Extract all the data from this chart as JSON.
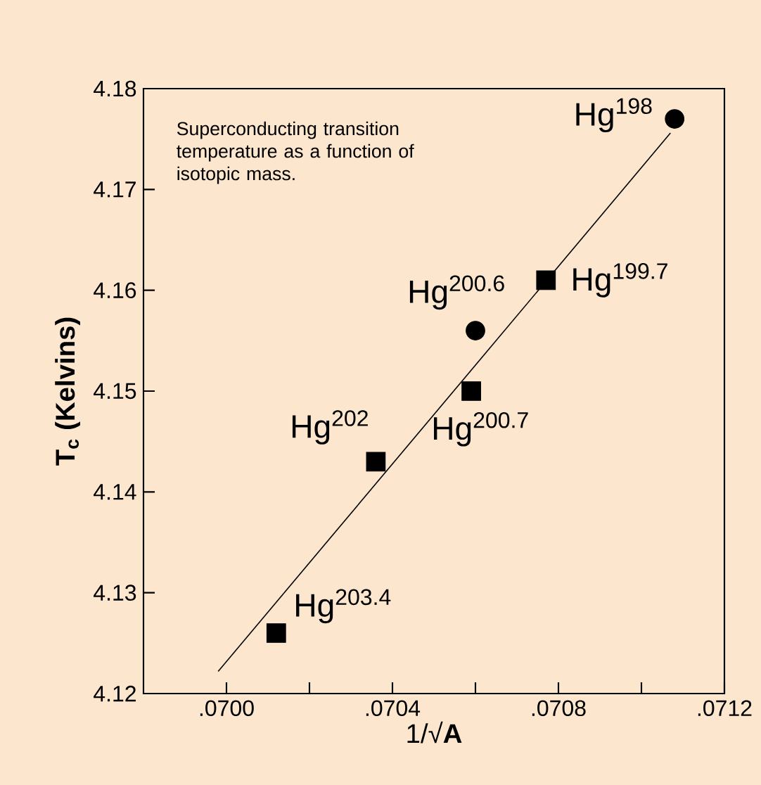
{
  "chart_data": {
    "type": "scatter",
    "xlabel": "1/√**A**",
    "ylabel": "T$_{c}$ (Kelvins)",
    "xlim": [
      0.0698,
      0.0712
    ],
    "ylim": [
      4.12,
      4.18
    ],
    "xticks": [
      {
        "value": 0.07,
        "label": ".0700"
      },
      {
        "value": 0.0702,
        "label": null
      },
      {
        "value": 0.0704,
        "label": ".0704"
      },
      {
        "value": 0.0706,
        "label": null
      },
      {
        "value": 0.0708,
        "label": ".0708"
      },
      {
        "value": 0.071,
        "label": null
      },
      {
        "value": 0.0712,
        "label": ".0712"
      }
    ],
    "yticks": [
      4.12,
      4.13,
      4.14,
      4.15,
      4.16,
      4.17,
      4.18
    ],
    "grid": false,
    "series": [
      {
        "marker": "circle",
        "color": "#000000",
        "x": [
          0.07108,
          0.0706
        ],
        "values": [
          4.177,
          4.156
        ]
      },
      {
        "marker": "square",
        "color": "#000000",
        "x": [
          0.07077,
          0.07059,
          0.07036,
          0.07012
        ],
        "values": [
          4.161,
          4.15,
          4.143,
          4.126
        ]
      },
      {
        "type": "line",
        "color": "#000000",
        "x": [
          0.06998,
          0.07107
        ],
        "values": [
          4.1222,
          4.1756
        ]
      }
    ],
    "annotations": [
      "Superconducting transition temperature as a function of isotopic mass.",
      {
        "text": "Hg$^{198}$",
        "x": 0.07108,
        "y": 4.177
      },
      {
        "text": "Hg$^{199.7}$",
        "x": 0.07077,
        "y": 4.161
      },
      {
        "text": "Hg$^{200.6}$",
        "x": 0.0706,
        "y": 4.156
      },
      {
        "text": "Hg$^{200.7}$",
        "x": 0.07059,
        "y": 4.15
      },
      {
        "text": "Hg$^{202}$",
        "x": 0.07036,
        "y": 4.143
      },
      {
        "text": "Hg$^{203.4}$",
        "x": 0.07012,
        "y": 4.126
      }
    ]
  }
}
